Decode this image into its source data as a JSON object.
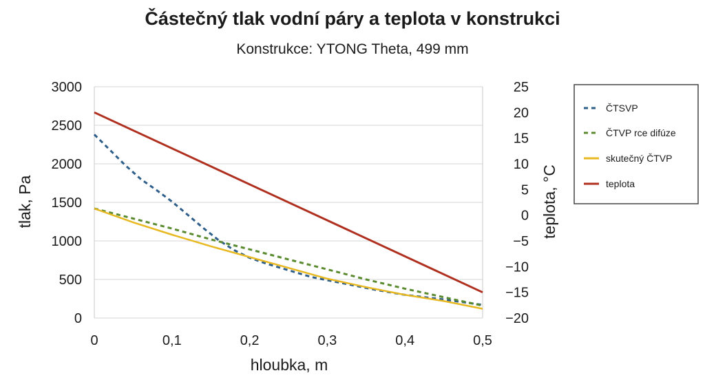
{
  "chart_data": {
    "type": "line",
    "title": "Částečný tlak vodní páry a teplota v konstrukci",
    "subtitle": "Konstrukce: YTONG Theta, 499 mm",
    "xlabel": "hloubka, m",
    "ylabel": "tlak, Pa",
    "y2label": "teplota, °C",
    "xlim": [
      0,
      0.5
    ],
    "ylim": [
      0,
      3000
    ],
    "y2lim": [
      -20,
      25
    ],
    "x_ticks": [
      "0",
      "0,1",
      "0,2",
      "0,3",
      "0,4",
      "0,5"
    ],
    "y_ticks": [
      "0",
      "500",
      "1000",
      "1500",
      "2000",
      "2500",
      "3000"
    ],
    "y2_ticks": [
      "−20",
      "−15",
      "−10",
      "−5",
      "0",
      "5",
      "10",
      "15",
      "20",
      "25"
    ],
    "grid": true,
    "legend_position": "right",
    "series": [
      {
        "name": "ČTSVP",
        "axis": "left",
        "style": "dashed",
        "color": "#2e5e8a",
        "x": [
          0,
          0.02,
          0.04,
          0.06,
          0.08,
          0.1,
          0.12,
          0.14,
          0.16,
          0.18,
          0.2,
          0.22,
          0.25,
          0.28,
          0.3,
          0.33,
          0.36,
          0.4,
          0.45,
          0.5
        ],
        "y": [
          2380,
          2180,
          1980,
          1800,
          1660,
          1510,
          1340,
          1170,
          1010,
          880,
          780,
          710,
          620,
          530,
          490,
          430,
          370,
          300,
          240,
          170
        ]
      },
      {
        "name": "ČTVP rce difúze",
        "axis": "left",
        "style": "dashed",
        "color": "#5a8a2e",
        "x": [
          0,
          0.05,
          0.1,
          0.15,
          0.2,
          0.25,
          0.3,
          0.35,
          0.4,
          0.45,
          0.5
        ],
        "y": [
          1420,
          1290,
          1160,
          1020,
          890,
          760,
          630,
          500,
          380,
          270,
          160
        ]
      },
      {
        "name": "skutečný ČTVP",
        "axis": "left",
        "style": "solid",
        "color": "#e8b820",
        "x": [
          0,
          0.05,
          0.1,
          0.15,
          0.2,
          0.25,
          0.3,
          0.35,
          0.4,
          0.45,
          0.5
        ],
        "y": [
          1420,
          1240,
          1080,
          930,
          790,
          650,
          510,
          400,
          300,
          220,
          120
        ]
      },
      {
        "name": "teplota",
        "axis": "right",
        "style": "solid",
        "color": "#b03020",
        "x": [
          0,
          0.5
        ],
        "y": [
          20,
          -15
        ]
      }
    ]
  }
}
